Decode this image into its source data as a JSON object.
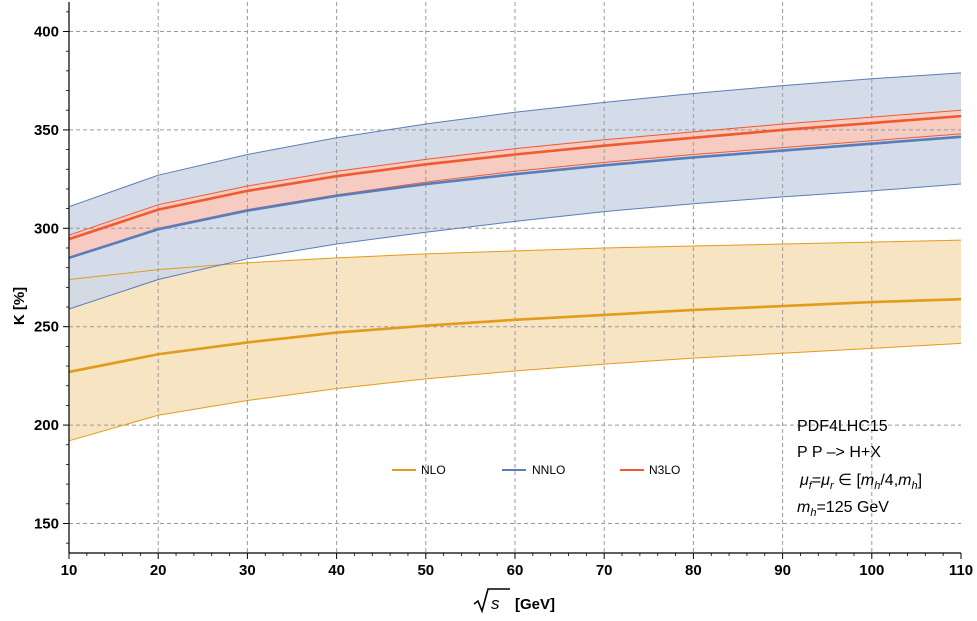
{
  "chart_data": {
    "type": "area",
    "xlabel": "√s [GeV]",
    "xlabel_unit": "[GeV]",
    "ylabel": "K [%]",
    "xlim": [
      10,
      110
    ],
    "ylim": [
      135,
      415
    ],
    "xticks": [
      10,
      20,
      30,
      40,
      50,
      60,
      70,
      80,
      90,
      100,
      110
    ],
    "yticks": [
      150,
      200,
      250,
      300,
      350,
      400
    ],
    "grid": true,
    "legend_position": "bottom-center",
    "x": [
      10,
      20,
      30,
      40,
      50,
      60,
      70,
      80,
      90,
      100,
      110
    ],
    "series": [
      {
        "name": "NLO",
        "color": "#e39b1d",
        "fill": "#f5dfb7",
        "central": [
          227,
          236,
          242,
          247,
          250.5,
          253.5,
          256,
          258.5,
          260.5,
          262.5,
          264
        ],
        "upper": [
          274,
          279,
          282.5,
          285,
          287,
          288.5,
          290,
          291,
          292,
          293,
          294
        ],
        "lower": [
          192,
          205,
          212.5,
          218.5,
          223.5,
          227.5,
          231,
          234,
          236.5,
          239,
          241.5
        ]
      },
      {
        "name": "NNLO",
        "color": "#5a7db9",
        "fill": "#cfd8e8",
        "central": [
          285,
          299.5,
          309,
          316.5,
          322.5,
          327.5,
          332,
          336,
          339.5,
          343,
          346.5
        ],
        "upper": [
          311,
          327,
          337.5,
          346,
          353,
          359,
          364,
          368.5,
          372.5,
          376,
          379
        ],
        "lower": [
          259,
          274,
          284.5,
          292,
          298,
          303.5,
          308.5,
          312.5,
          316,
          319,
          322.5
        ]
      },
      {
        "name": "N3LO",
        "color": "#ef5a2f",
        "fill": "#f9c9bd",
        "central": [
          294.5,
          309.5,
          319,
          326.5,
          332.5,
          337.5,
          342,
          346,
          350,
          353.5,
          357
        ],
        "upper": [
          296.5,
          312,
          321.5,
          329,
          335,
          340.5,
          345,
          349,
          353,
          356.5,
          360
        ],
        "lower": [
          285,
          300,
          309.5,
          317,
          323.5,
          329,
          333.5,
          337.5,
          341,
          344.5,
          348
        ]
      }
    ],
    "annotations": {
      "line1": "PDF4LHC15",
      "line2": "P P –> H+X",
      "line3": "μf=μr ∈ [mh/4,mh]",
      "line4": "mh=125 GeV"
    }
  },
  "annot_parts": {
    "mu": "μ",
    "f": "f",
    "eq": "=",
    "r": "r",
    "in_open": " ∈ [",
    "m": "m",
    "h": "h",
    "quarter": "/4,",
    "close": "]",
    "mass_val": "=125 GeV"
  },
  "axis_parts": {
    "sqrt_s": "s",
    "unit": "[GeV]",
    "ylabel": "K [%]"
  }
}
